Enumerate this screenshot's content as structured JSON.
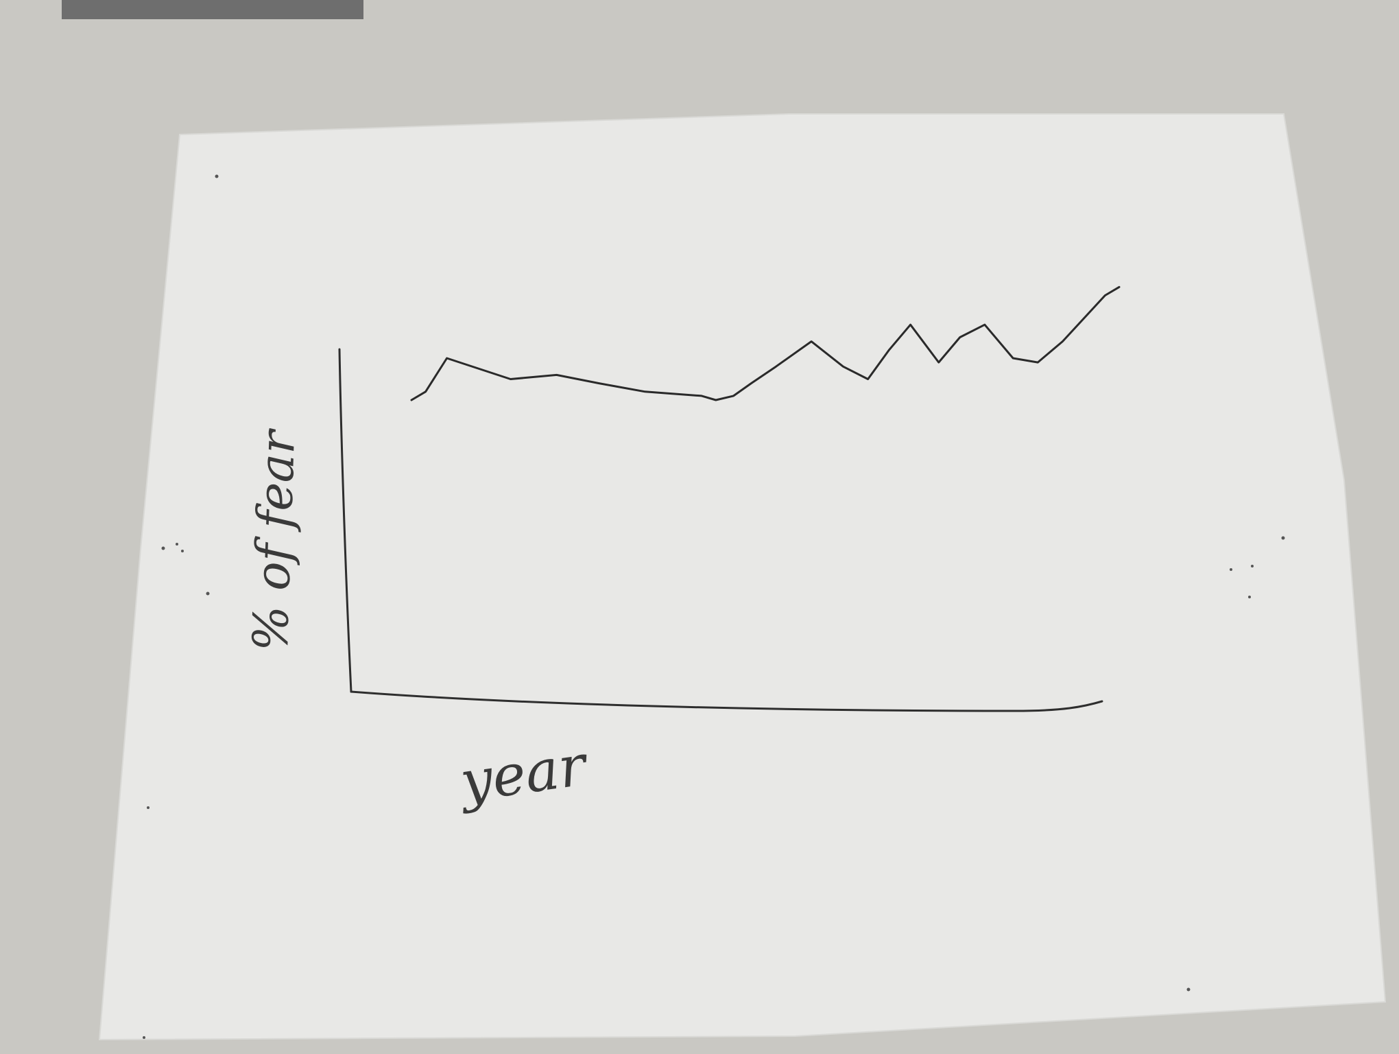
{
  "colors": {
    "desk": "#c9c8c3",
    "paper": "#e9e9e7",
    "ink": "#2e2e2e"
  },
  "chart_data": {
    "type": "line",
    "title": "",
    "xlabel": "year",
    "ylabel": "% of fear",
    "xlim": [
      0,
      20
    ],
    "ylim": [
      0,
      100
    ],
    "grid": false,
    "legend": "none",
    "x": [
      0,
      0.4,
      1,
      2.8,
      4.1,
      5.3,
      6.6,
      8.2,
      8.6,
      9.1,
      9.6,
      10.3,
      11.3,
      12.2,
      12.9,
      13.5,
      14.1,
      14.9,
      15.5,
      16.2,
      17.0,
      17.7,
      18.4,
      19.6,
      20
    ],
    "values": [
      70,
      72,
      80,
      75,
      76,
      74,
      72,
      71,
      70,
      71,
      74,
      78,
      84,
      78,
      75,
      82,
      88,
      79,
      85,
      88,
      80,
      79,
      84,
      95,
      97
    ]
  }
}
